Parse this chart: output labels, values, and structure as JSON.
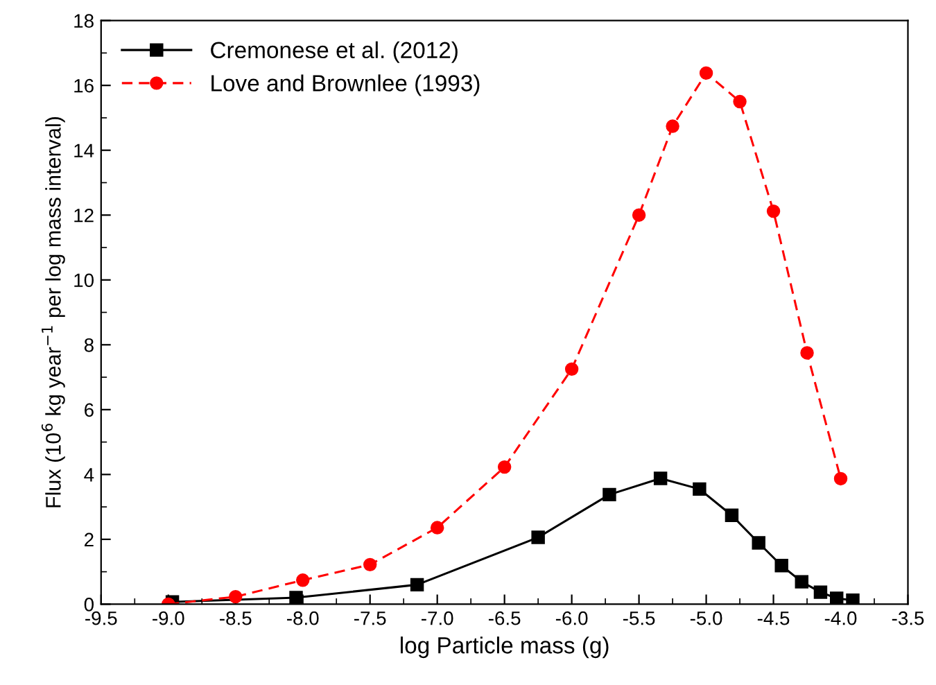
{
  "chart_data": {
    "type": "line",
    "xlabel": "log Particle mass (g)",
    "ylabel": "Flux (10$^{6}$ kg year$^{−1}$ per log mass interval)",
    "xlim": [
      -9.5,
      -3.5
    ],
    "xticks": [
      {
        "value": -9.5,
        "label": "-9.5"
      },
      {
        "value": -9,
        "label": "-9.0"
      },
      {
        "value": -8.5,
        "label": "-8.5"
      },
      {
        "value": -8,
        "label": "-8.0"
      },
      {
        "value": -7.5,
        "label": "-7.5"
      },
      {
        "value": -7,
        "label": "-7.0"
      },
      {
        "value": -6.5,
        "label": "-6.5"
      },
      {
        "value": -6,
        "label": "-6.0"
      },
      {
        "value": -5.5,
        "label": "-5.5"
      },
      {
        "value": -5,
        "label": "-5.0"
      },
      {
        "value": -4.5,
        "label": "-4.5"
      },
      {
        "value": -4,
        "label": "-4.0"
      },
      {
        "value": -3.5,
        "label": "-3.5"
      }
    ],
    "ylim": [
      0,
      18
    ],
    "yticks": [
      0,
      2,
      4,
      6,
      8,
      10,
      12,
      14,
      16,
      18
    ],
    "grid": false,
    "legend": "top left",
    "series": [
      {
        "name": "Cremonese et al. (2012)",
        "color": "#000000",
        "marker": "square",
        "line_style": "solid",
        "x": [
          -8.97,
          -8.05,
          -7.15,
          -6.25,
          -5.72,
          -5.34,
          -5.05,
          -4.81,
          -4.61,
          -4.44,
          -4.29,
          -4.15,
          -4.03,
          -3.91
        ],
        "values": [
          0.07,
          0.2,
          0.6,
          2.06,
          3.38,
          3.88,
          3.55,
          2.74,
          1.89,
          1.19,
          0.69,
          0.37,
          0.18,
          0.12
        ]
      },
      {
        "name": "Love and Brownlee (1993)",
        "color": "#ff0000",
        "marker": "circle",
        "line_style": "dashed",
        "x": [
          -9.0,
          -8.5,
          -8.0,
          -7.5,
          -7.0,
          -6.5,
          -6.0,
          -5.5,
          -5.25,
          -5.0,
          -4.75,
          -4.5,
          -4.25,
          -4.0
        ],
        "values": [
          0.0,
          0.23,
          0.74,
          1.22,
          2.36,
          4.23,
          7.25,
          12.0,
          14.74,
          16.38,
          15.5,
          12.12,
          7.75,
          3.87
        ]
      }
    ]
  }
}
